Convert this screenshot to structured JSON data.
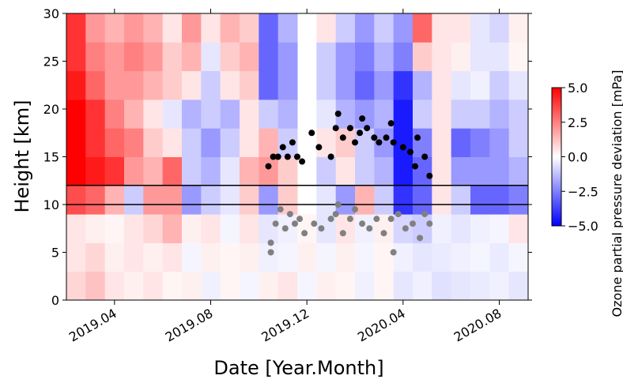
{
  "chart_data": {
    "type": "heatmap",
    "xlabel": "Date [Year.Month]",
    "ylabel": "Height [km]",
    "colorbar_label": "Ozone partial pressure deviation [mPa]",
    "xlim": [
      1,
      20.2
    ],
    "ylim": [
      0,
      30
    ],
    "xticks": [
      {
        "value": 3,
        "label": "2019.04"
      },
      {
        "value": 7,
        "label": "2019.08"
      },
      {
        "value": 11,
        "label": "2019.12"
      },
      {
        "value": 15,
        "label": "2020.04"
      },
      {
        "value": 19,
        "label": "2020.08"
      }
    ],
    "yticks": [
      0,
      5,
      10,
      15,
      20,
      25,
      30
    ],
    "zlim": [
      -5,
      5
    ],
    "zticks": [
      {
        "value": -5,
        "label": "−5.0"
      },
      {
        "value": -2.5,
        "label": "−2.5"
      },
      {
        "value": 0,
        "label": "0.0"
      },
      2.5,
      {
        "value": 5,
        "label": "5.0"
      }
    ],
    "colormap": [
      "#0000ff",
      "#ffffff",
      "#ff0000"
    ],
    "x": [
      1.4,
      2.2,
      3.0,
      3.8,
      4.6,
      5.4,
      6.2,
      7.0,
      7.8,
      8.6,
      9.4,
      10.2,
      11.0,
      11.8,
      12.6,
      13.4,
      14.2,
      15.0,
      15.8,
      16.6,
      17.4,
      18.2,
      19.0,
      19.8
    ],
    "y": [
      1.5,
      4.5,
      7.5,
      10.5,
      13.5,
      16.5,
      19.5,
      22.5,
      25.5,
      28.5
    ],
    "z": [
      [
        0.8,
        1.2,
        0.5,
        0.3,
        0.5,
        0.2,
        0.3,
        -0.3,
        0.2,
        -0.2,
        0.3,
        0.5,
        -0.2,
        0.3,
        0.2,
        -0.3,
        0.2,
        -0.5,
        -0.3,
        -0.6,
        -0.5,
        -0.4,
        -0.3,
        -0.5
      ],
      [
        0.5,
        0.8,
        0.3,
        0.5,
        0.3,
        0.5,
        -0.2,
        0.3,
        0.2,
        0.3,
        -0.3,
        -0.2,
        0.3,
        -0.2,
        0.3,
        -0.2,
        0.2,
        -0.3,
        -0.5,
        -0.4,
        -0.3,
        -0.2,
        -0.4,
        -0.2
      ],
      [
        0.5,
        0.3,
        0.2,
        0.5,
        0.8,
        1.5,
        0.3,
        0.5,
        -0.2,
        0.5,
        -0.5,
        -0.3,
        0.2,
        -0.5,
        0.5,
        -0.3,
        0.3,
        -0.8,
        -1,
        -0.3,
        -0.5,
        -0.3,
        -0.2,
        0.5
      ],
      [
        3.5,
        3,
        1.5,
        -1,
        2,
        2,
        -2,
        -1,
        -0.5,
        1,
        -2,
        1,
        null,
        -0.5,
        -2,
        1.5,
        -1,
        -4,
        -3,
        0.5,
        -1,
        -3,
        -3,
        -2.5
      ],
      [
        5,
        4.5,
        4,
        2,
        1.5,
        3,
        -1,
        -1.5,
        -0.5,
        1.5,
        2,
        1,
        null,
        -1,
        0.5,
        -1,
        -1.5,
        -4.5,
        -3,
        0.5,
        -2,
        -2,
        -2,
        -1.5
      ],
      [
        5,
        4,
        3,
        2.5,
        1,
        0.5,
        -1,
        -2,
        -1,
        0.5,
        1.5,
        -1,
        null,
        0.5,
        1,
        -1,
        -2,
        -4.5,
        -2.5,
        0.5,
        -3,
        -2.5,
        -2,
        -1
      ],
      [
        5,
        4,
        2.5,
        1.5,
        0.5,
        -0.5,
        -1.5,
        -1,
        -1.5,
        0.5,
        -1,
        -1.5,
        null,
        -0.5,
        -1.5,
        -2,
        -1.5,
        -4.5,
        -1,
        0.5,
        -1,
        -1,
        -1.5,
        -1
      ],
      [
        4.5,
        3,
        2,
        2,
        1.5,
        1,
        0.5,
        -1,
        0.5,
        1,
        -3,
        -2,
        null,
        -1,
        -2,
        -3,
        -2,
        -4,
        -1.5,
        0.5,
        -0.5,
        -0.3,
        -1,
        -0.5
      ],
      [
        4,
        2.5,
        2,
        2.5,
        2,
        1,
        1.5,
        -0.5,
        1,
        1.5,
        -3,
        -2,
        null,
        -1,
        -2,
        -2.5,
        -1.5,
        -2.5,
        1,
        0.5,
        0.3,
        -0.5,
        -0.5,
        0.2
      ],
      [
        4,
        2,
        1.5,
        2,
        1.5,
        0.5,
        2,
        0.5,
        1.5,
        1,
        -3,
        -1.5,
        null,
        0.5,
        -1,
        -2,
        -1,
        -2,
        3,
        0.5,
        0.5,
        -0.5,
        -0.8,
        0.3
      ]
    ],
    "hlines": [
      10,
      12
    ],
    "series": [
      {
        "color": "#000000",
        "x": [
          9.4,
          9.6,
          9.8,
          10.0,
          10.2,
          10.4,
          10.6,
          10.8,
          11.2,
          11.5,
          12.0,
          12.2,
          12.5,
          12.8,
          13.0,
          13.2,
          13.5,
          13.8,
          14.0,
          14.3,
          14.6,
          15.0,
          15.3,
          15.6,
          15.9,
          16.1,
          12.3,
          13.3,
          14.5,
          15.5
        ],
        "values": [
          14,
          15,
          15,
          16,
          15,
          16.5,
          15,
          14.5,
          17.5,
          16,
          15,
          18,
          17,
          18,
          16.5,
          17.5,
          18,
          17,
          16.5,
          17,
          16.5,
          16,
          15.5,
          17,
          15,
          13,
          19.5,
          19,
          18.5,
          14
        ]
      },
      {
        "color": "#808080",
        "x": [
          9.5,
          9.7,
          9.9,
          10.1,
          10.3,
          10.5,
          10.7,
          10.9,
          11.3,
          11.6,
          12.0,
          12.2,
          12.5,
          12.8,
          13.0,
          13.3,
          13.6,
          13.9,
          14.2,
          14.5,
          14.8,
          15.1,
          15.4,
          15.7,
          15.9,
          16.1,
          9.5,
          12.3,
          14.6
        ],
        "values": [
          6,
          8,
          9.5,
          7.5,
          9,
          8,
          8.5,
          7,
          8,
          7.5,
          8.5,
          9,
          7,
          8.5,
          9.5,
          8,
          7.5,
          8.5,
          7,
          8.5,
          9,
          7.5,
          8,
          6.5,
          9,
          8,
          5,
          10,
          5
        ]
      }
    ]
  }
}
